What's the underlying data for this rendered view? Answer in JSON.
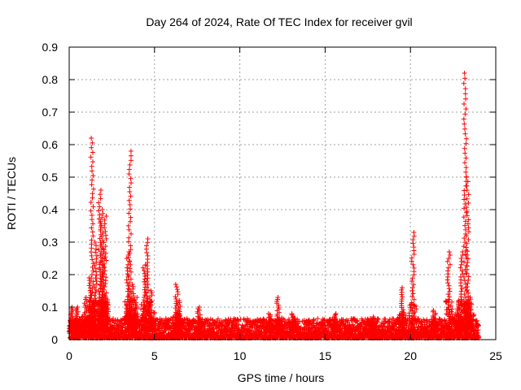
{
  "chart_data": {
    "type": "scatter",
    "title": "Day 264 of 2024, Rate Of TEC Index for receiver gvil",
    "xlabel": "GPS time / hours",
    "ylabel": "ROTI / TECUs",
    "xlim": [
      0,
      25
    ],
    "ylim": [
      0,
      0.9
    ],
    "xticks": [
      "0",
      "5",
      "10",
      "15",
      "20",
      "25"
    ],
    "yticks": [
      "0",
      "0.1",
      "0.2",
      "0.3",
      "0.4",
      "0.5",
      "0.6",
      "0.7",
      "0.8",
      "0.9"
    ],
    "grid": true,
    "marker": "+",
    "color": "#ff0000",
    "background_level": {
      "x": [
        0,
        24
      ],
      "typical": 0.03,
      "max": 0.06
    },
    "spikes": [
      {
        "x": 0.15,
        "peak": 0.1,
        "base": 0.02
      },
      {
        "x": 0.45,
        "peak": 0.1,
        "base": 0.02
      },
      {
        "x": 0.95,
        "peak": 0.13,
        "base": 0.02
      },
      {
        "x": 1.2,
        "peak": 0.19,
        "base": 0.03
      },
      {
        "x": 1.35,
        "peak": 0.62,
        "base": 0.03
      },
      {
        "x": 1.55,
        "peak": 0.3,
        "base": 0.03
      },
      {
        "x": 1.8,
        "peak": 0.46,
        "base": 0.03
      },
      {
        "x": 1.9,
        "peak": 0.4,
        "base": 0.03
      },
      {
        "x": 2.0,
        "peak": 0.28,
        "base": 0.03
      },
      {
        "x": 2.1,
        "peak": 0.38,
        "base": 0.03
      },
      {
        "x": 2.2,
        "peak": 0.13,
        "base": 0.03
      },
      {
        "x": 3.45,
        "peak": 0.27,
        "base": 0.03
      },
      {
        "x": 3.55,
        "peak": 0.58,
        "base": 0.03
      },
      {
        "x": 3.7,
        "peak": 0.17,
        "base": 0.03
      },
      {
        "x": 3.9,
        "peak": 0.13,
        "base": 0.03
      },
      {
        "x": 4.4,
        "peak": 0.23,
        "base": 0.03
      },
      {
        "x": 4.6,
        "peak": 0.31,
        "base": 0.03
      },
      {
        "x": 4.8,
        "peak": 0.15,
        "base": 0.03
      },
      {
        "x": 6.3,
        "peak": 0.17,
        "base": 0.02
      },
      {
        "x": 6.45,
        "peak": 0.12,
        "base": 0.02
      },
      {
        "x": 7.6,
        "peak": 0.1,
        "base": 0.02
      },
      {
        "x": 11.75,
        "peak": 0.08,
        "base": 0.02
      },
      {
        "x": 12.25,
        "peak": 0.13,
        "base": 0.02
      },
      {
        "x": 13.1,
        "peak": 0.08,
        "base": 0.02
      },
      {
        "x": 15.6,
        "peak": 0.08,
        "base": 0.02
      },
      {
        "x": 17.8,
        "peak": 0.07,
        "base": 0.02
      },
      {
        "x": 19.5,
        "peak": 0.16,
        "base": 0.02
      },
      {
        "x": 20.15,
        "peak": 0.33,
        "base": 0.02
      },
      {
        "x": 21.4,
        "peak": 0.09,
        "base": 0.02
      },
      {
        "x": 22.25,
        "peak": 0.27,
        "base": 0.03
      },
      {
        "x": 22.8,
        "peak": 0.12,
        "base": 0.03
      },
      {
        "x": 23.0,
        "peak": 0.27,
        "base": 0.03
      },
      {
        "x": 23.2,
        "peak": 0.82,
        "base": 0.03
      },
      {
        "x": 23.35,
        "peak": 0.5,
        "base": 0.03
      },
      {
        "x": 23.5,
        "peak": 0.13,
        "base": 0.03
      }
    ]
  }
}
